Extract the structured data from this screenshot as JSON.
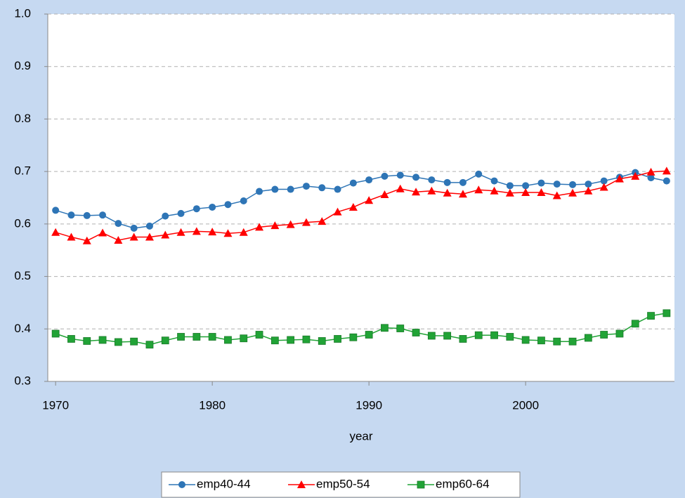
{
  "chart_data": {
    "type": "line",
    "x_label": "year",
    "x": [
      1970,
      1971,
      1972,
      1973,
      1974,
      1975,
      1976,
      1977,
      1978,
      1979,
      1980,
      1981,
      1982,
      1983,
      1984,
      1985,
      1986,
      1987,
      1988,
      1989,
      1990,
      1991,
      1992,
      1993,
      1994,
      1995,
      1996,
      1997,
      1998,
      1999,
      2000,
      2001,
      2002,
      2003,
      2004,
      2005,
      2006,
      2007,
      2008,
      2009
    ],
    "xlim": [
      1969.5,
      2009.5
    ],
    "xticks": [
      1970,
      1980,
      1990,
      2000
    ],
    "ylim": [
      0.3,
      1.0
    ],
    "yticks": [
      0.3,
      0.4,
      0.5,
      0.6,
      0.7,
      0.8,
      0.9,
      {
        "value": 1.0,
        "label": "1.0"
      }
    ],
    "grid": true,
    "legend": "bottom",
    "series": [
      {
        "name": "emp40-44",
        "color": "#2e75b6",
        "marker": "circle",
        "values": [
          0.626,
          0.617,
          0.616,
          0.617,
          0.601,
          0.592,
          0.596,
          0.615,
          0.62,
          0.629,
          0.632,
          0.637,
          0.644,
          0.662,
          0.666,
          0.666,
          0.672,
          0.669,
          0.666,
          0.678,
          0.684,
          0.691,
          0.693,
          0.689,
          0.684,
          0.679,
          0.679,
          0.695,
          0.682,
          0.673,
          0.673,
          0.678,
          0.676,
          0.675,
          0.676,
          0.682,
          0.689,
          0.698,
          0.688,
          0.682
        ]
      },
      {
        "name": "emp50-54",
        "color": "#ff0000",
        "marker": "triangle",
        "values": [
          0.584,
          0.575,
          0.568,
          0.583,
          0.569,
          0.575,
          0.575,
          0.579,
          0.584,
          0.586,
          0.585,
          0.582,
          0.584,
          0.594,
          0.597,
          0.599,
          0.603,
          0.605,
          0.623,
          0.632,
          0.645,
          0.656,
          0.667,
          0.661,
          0.663,
          0.659,
          0.657,
          0.665,
          0.663,
          0.659,
          0.66,
          0.66,
          0.654,
          0.659,
          0.663,
          0.67,
          0.686,
          0.691,
          0.699,
          0.701
        ]
      },
      {
        "name": "emp60-64",
        "color": "#21a336",
        "marker": "square",
        "values": [
          0.391,
          0.381,
          0.377,
          0.379,
          0.375,
          0.376,
          0.37,
          0.378,
          0.385,
          0.385,
          0.385,
          0.379,
          0.382,
          0.389,
          0.378,
          0.379,
          0.38,
          0.377,
          0.381,
          0.384,
          0.389,
          0.402,
          0.401,
          0.393,
          0.387,
          0.387,
          0.381,
          0.388,
          0.388,
          0.385,
          0.379,
          0.378,
          0.376,
          0.376,
          0.383,
          0.389,
          0.391,
          0.41,
          0.425,
          0.43
        ]
      }
    ]
  }
}
